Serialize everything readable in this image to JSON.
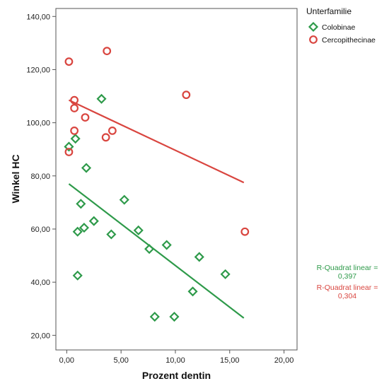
{
  "chart_data": {
    "type": "scatter",
    "xlabel": "Prozent dentin",
    "ylabel": "Winkel HC",
    "xlim": [
      -1,
      21.2
    ],
    "ylim": [
      14.5,
      143
    ],
    "x_ticks": [
      0,
      5,
      10,
      15,
      20
    ],
    "x_tick_labels": [
      "0,00",
      "5,00",
      "10,00",
      "15,00",
      "20,00"
    ],
    "y_ticks": [
      20,
      40,
      60,
      80,
      100,
      120,
      140
    ],
    "y_tick_labels": [
      "20,00",
      "40,00",
      "60,00",
      "80,00",
      "100,00",
      "120,00",
      "140,00"
    ],
    "grid": false,
    "legend": {
      "title": "Unterfamilie",
      "position": "top-right"
    },
    "series": [
      {
        "name": "Colobinae",
        "marker": "diamond",
        "color": "#2e9a4a",
        "points": [
          [
            3.2,
            109
          ],
          [
            0.8,
            94
          ],
          [
            0.2,
            91
          ],
          [
            1.8,
            83
          ],
          [
            5.3,
            71
          ],
          [
            1.3,
            69.5
          ],
          [
            2.5,
            63
          ],
          [
            1.6,
            60.5
          ],
          [
            6.6,
            59.5
          ],
          [
            1.0,
            59
          ],
          [
            4.1,
            58
          ],
          [
            9.2,
            54
          ],
          [
            7.6,
            52.5
          ],
          [
            12.2,
            49.5
          ],
          [
            1.0,
            42.5
          ],
          [
            14.6,
            43
          ],
          [
            11.6,
            36.5
          ],
          [
            8.1,
            27
          ],
          [
            9.9,
            27
          ]
        ],
        "fit": {
          "x": [
            0.2,
            16.3
          ],
          "y": [
            77,
            26.5
          ]
        }
      },
      {
        "name": "Cercopithecinae",
        "marker": "circle",
        "color": "#d9453f",
        "points": [
          [
            0.2,
            123
          ],
          [
            3.7,
            127
          ],
          [
            0.7,
            108.5
          ],
          [
            0.7,
            105.5
          ],
          [
            11.0,
            110.5
          ],
          [
            1.7,
            102
          ],
          [
            0.7,
            97
          ],
          [
            4.2,
            97
          ],
          [
            3.6,
            94.5
          ],
          [
            0.2,
            89
          ],
          [
            16.4,
            59
          ]
        ],
        "fit": {
          "x": [
            0.2,
            16.3
          ],
          "y": [
            108.5,
            77.5
          ]
        }
      }
    ],
    "fit_labels": [
      {
        "series": "Colobinae",
        "line1": "R-Quadrat linear =",
        "line2": "0,397",
        "color": "#2e9a4a"
      },
      {
        "series": "Cercopithecinae",
        "line1": "R-Quadrat linear =",
        "line2": "0,304",
        "color": "#d9453f"
      }
    ]
  }
}
